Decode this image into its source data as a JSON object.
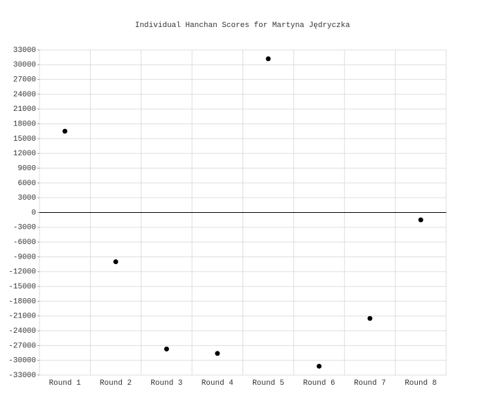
{
  "chart_data": {
    "type": "scatter",
    "title": "Individual Hanchan Scores for Martyna Jędryczka",
    "categories": [
      "Round 1",
      "Round 2",
      "Round 3",
      "Round 4",
      "Round 5",
      "Round 6",
      "Round 7",
      "Round 8"
    ],
    "values": [
      16500,
      -10000,
      -27700,
      -28600,
      31200,
      -31200,
      -21500,
      -1500
    ],
    "color": "#000000",
    "ylim": [
      -33000,
      33000
    ],
    "yticks": [
      -33000,
      -30000,
      -27000,
      -24000,
      -21000,
      -18000,
      -15000,
      -12000,
      -9000,
      -6000,
      -3000,
      0,
      3000,
      6000,
      9000,
      12000,
      15000,
      18000,
      21000,
      24000,
      27000,
      30000,
      33000
    ],
    "grid": true
  }
}
